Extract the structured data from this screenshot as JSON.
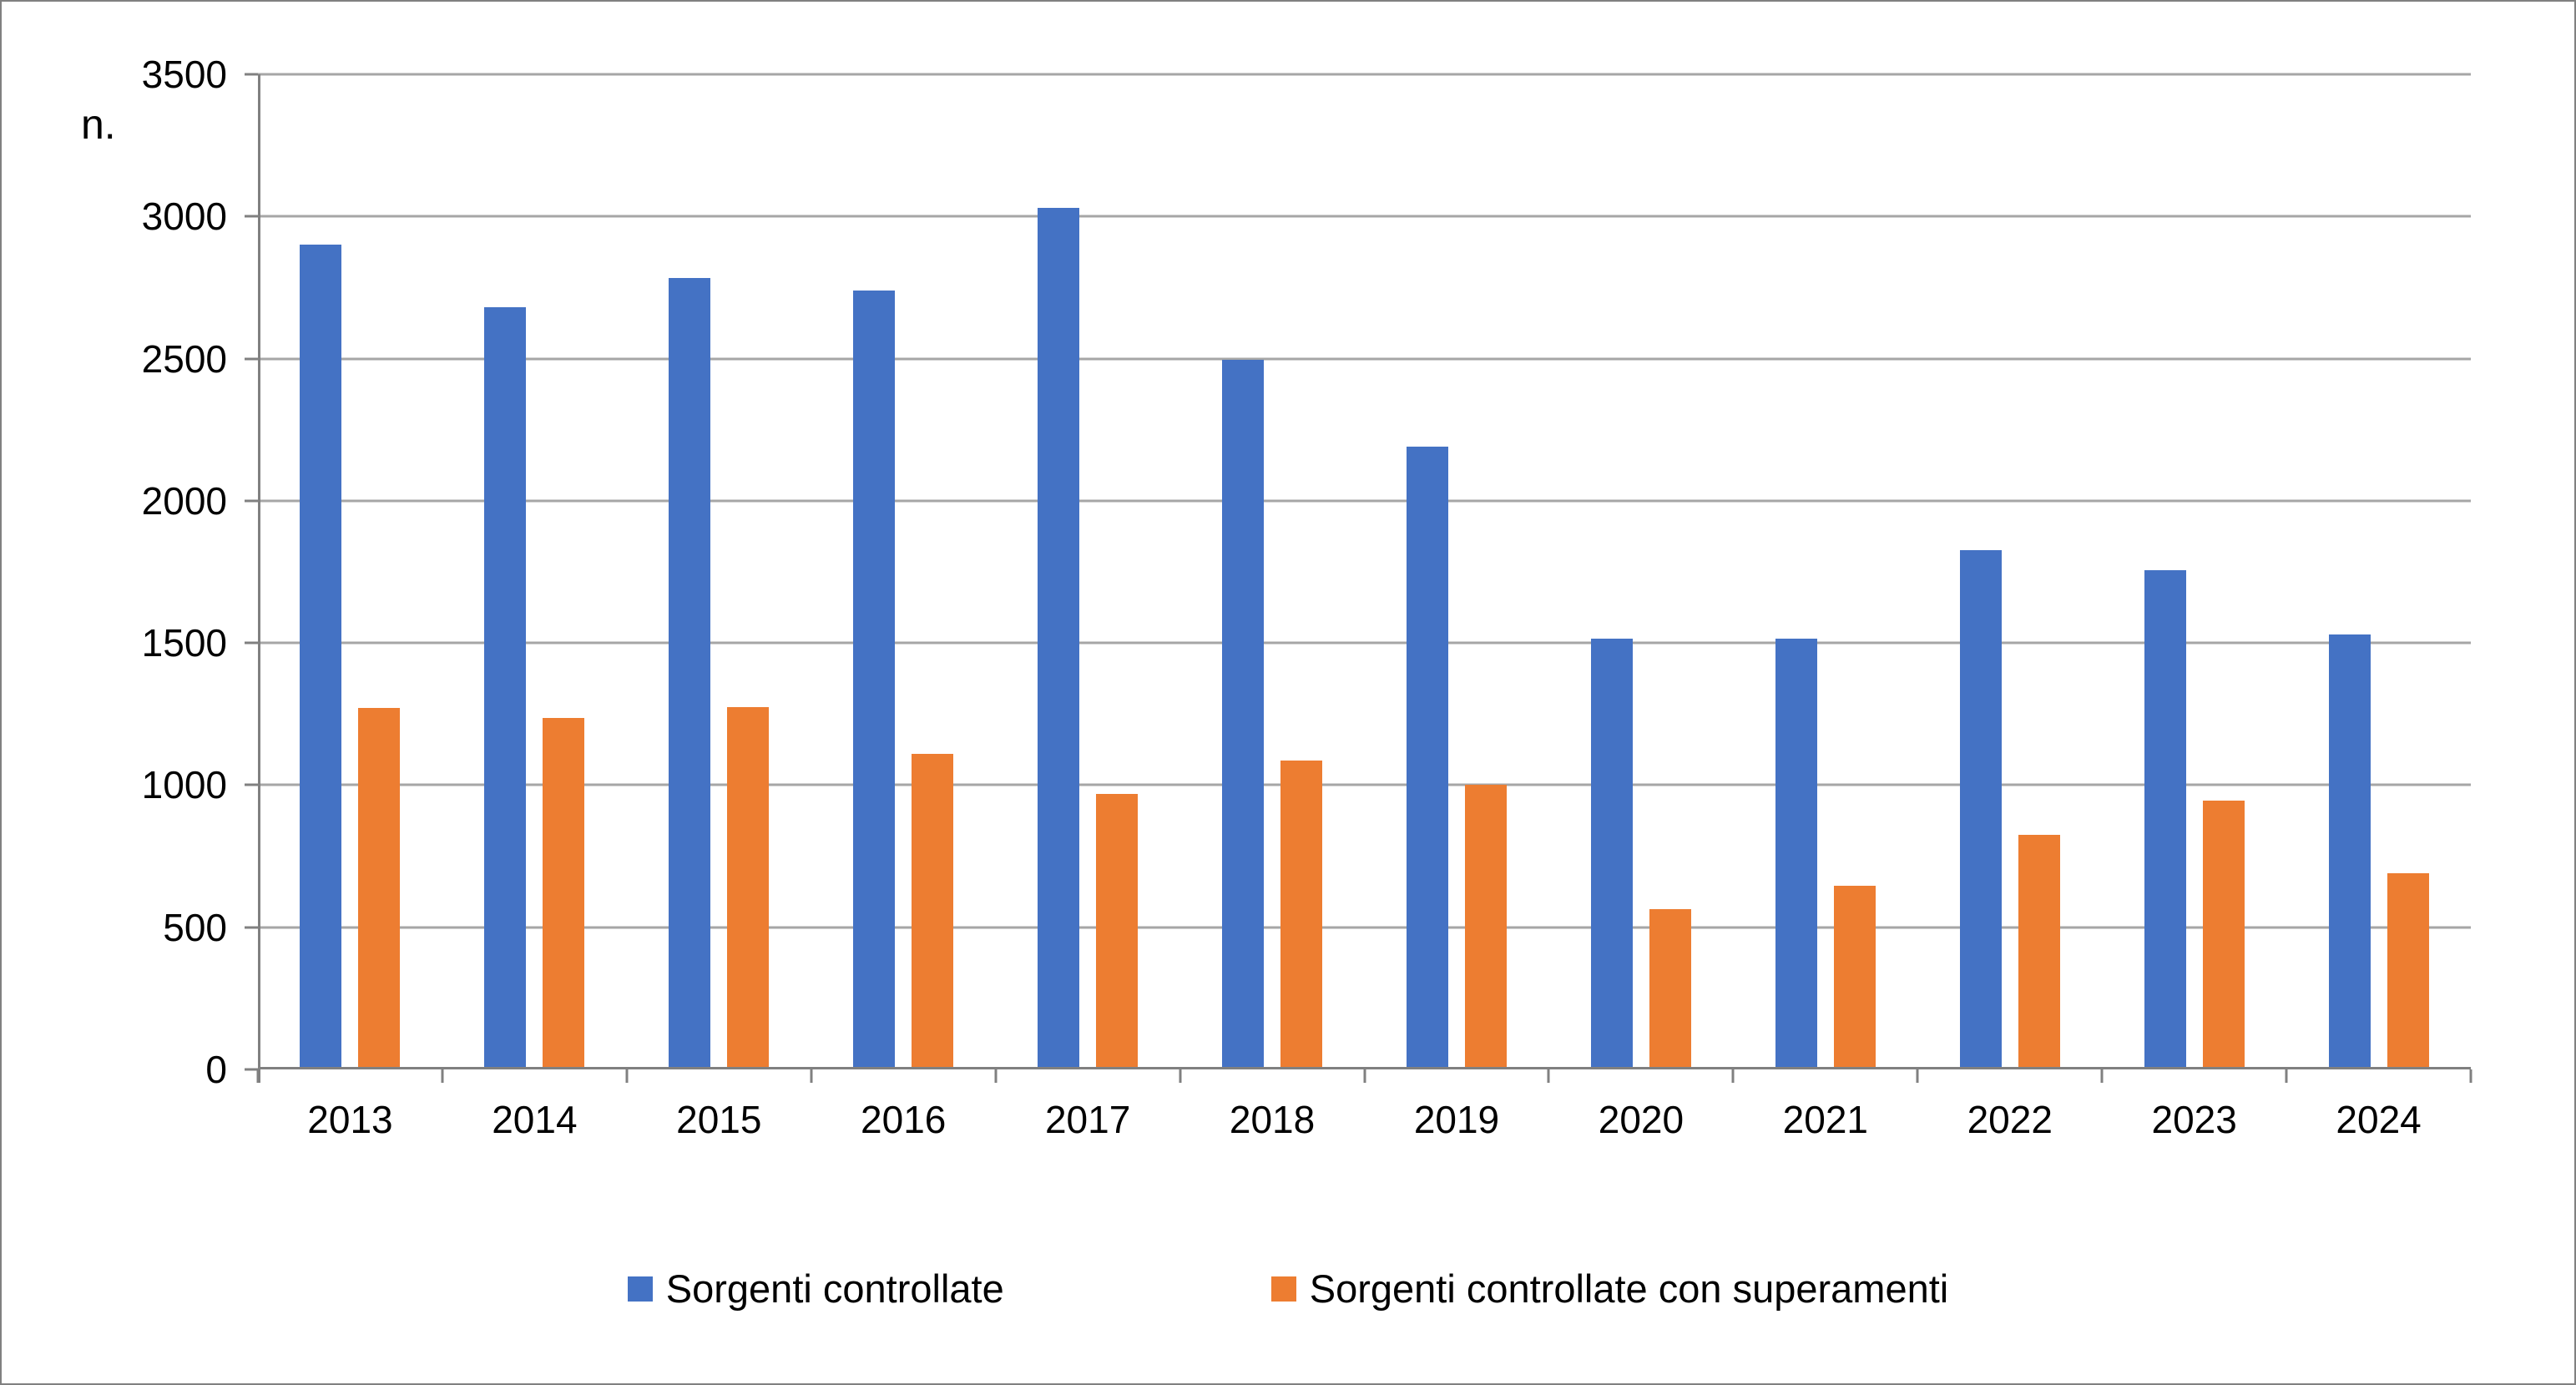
{
  "chart_data": {
    "type": "bar",
    "title": "",
    "xlabel": "",
    "ylabel": "n.",
    "ylim": [
      0,
      3500
    ],
    "y_tick_step": 500,
    "y_ticks": [
      0,
      500,
      1000,
      1500,
      2000,
      2500,
      3000,
      3500
    ],
    "grid": true,
    "legend_position": "bottom",
    "categories": [
      "2013",
      "2014",
      "2015",
      "2016",
      "2017",
      "2018",
      "2019",
      "2020",
      "2021",
      "2022",
      "2023",
      "2024"
    ],
    "series": [
      {
        "name": "Sorgenti controllate",
        "color": "#4472C4",
        "values": [
          2900,
          2680,
          2785,
          2740,
          3030,
          2495,
          2190,
          1515,
          1515,
          1825,
          1755,
          1530
        ]
      },
      {
        "name": "Sorgenti controllate con superamenti",
        "color": "#ED7D31",
        "values": [
          1270,
          1235,
          1275,
          1110,
          970,
          1085,
          1000,
          565,
          645,
          825,
          945,
          690
        ]
      }
    ],
    "colors": {
      "gridline": "#a6a6a6",
      "axis": "#808080",
      "text": "#000000",
      "background": "#ffffff"
    }
  }
}
